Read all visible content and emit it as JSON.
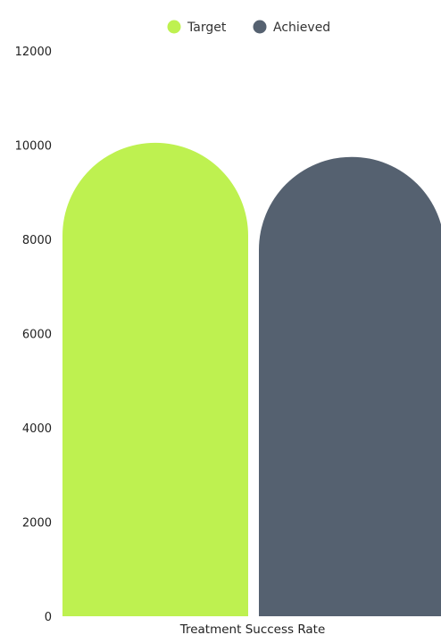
{
  "chart_data": {
    "type": "bar",
    "categories": [
      "Treatment Success Rate"
    ],
    "series": [
      {
        "name": "Target",
        "values": [
          10050
        ],
        "color": "#bef150"
      },
      {
        "name": "Achieved",
        "values": [
          9750
        ],
        "color": "#556170"
      }
    ],
    "y_ticks": [
      "0",
      "2000",
      "4000",
      "6000",
      "8000",
      "10000",
      "12000"
    ],
    "ylim": [
      0,
      12000
    ],
    "legend_position": "top-center",
    "grid": false,
    "bar_shape": "rounded-top"
  }
}
